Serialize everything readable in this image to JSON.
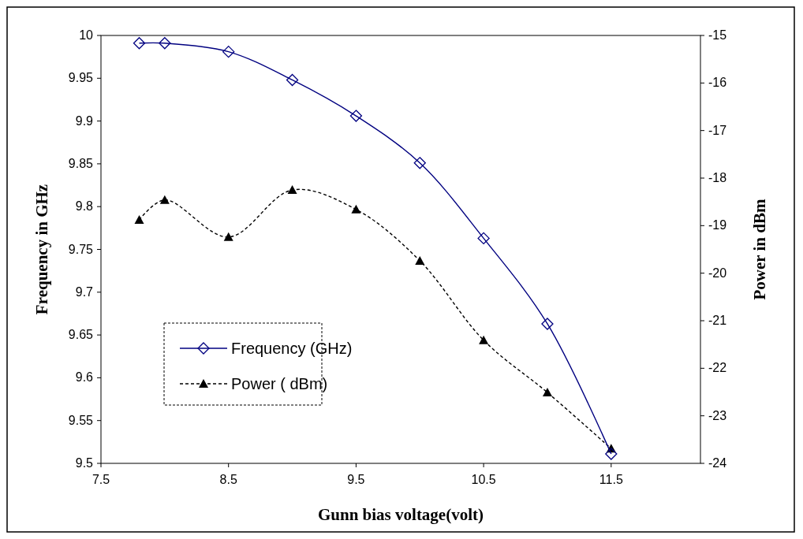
{
  "chart_data": {
    "type": "line",
    "xlabel": "Gunn bias voltage(volt)",
    "ylabel": "Frequency in GHz",
    "y2label": "Power in dBm",
    "x": [
      7.8,
      8.0,
      8.5,
      9.0,
      9.5,
      10.0,
      10.5,
      11.0,
      11.5
    ],
    "series": [
      {
        "name": "Frequency (GHz)",
        "color": "#000080",
        "values": [
          9.991,
          9.991,
          9.981,
          9.948,
          9.906,
          9.851,
          9.763,
          9.663,
          9.511
        ],
        "marker": "diamond",
        "line_style": "solid"
      },
      {
        "name": "Power ( dBm)",
        "color": "#000000",
        "axis": "y2",
        "values": [
          -18.88,
          -18.46,
          -19.24,
          -18.25,
          -18.66,
          -19.74,
          -21.41,
          -22.51,
          -23.69
        ],
        "marker": "triangle",
        "line_style": "dashed"
      }
    ],
    "xlim": [
      7.5,
      12.2
    ],
    "xticks": [
      7.5,
      8.5,
      9.5,
      10.5,
      11.5
    ],
    "ylim": [
      9.5,
      10
    ],
    "yticks": [
      9.5,
      9.55,
      9.6,
      9.65,
      9.7,
      9.75,
      9.8,
      9.85,
      9.9,
      9.95,
      10
    ],
    "y2lim": [
      -24,
      -15
    ],
    "y2ticks": [
      -24,
      -23,
      -22,
      -21,
      -20,
      -19,
      -18,
      -17,
      -16,
      -15
    ],
    "grid": false,
    "legend": "bottom left"
  }
}
